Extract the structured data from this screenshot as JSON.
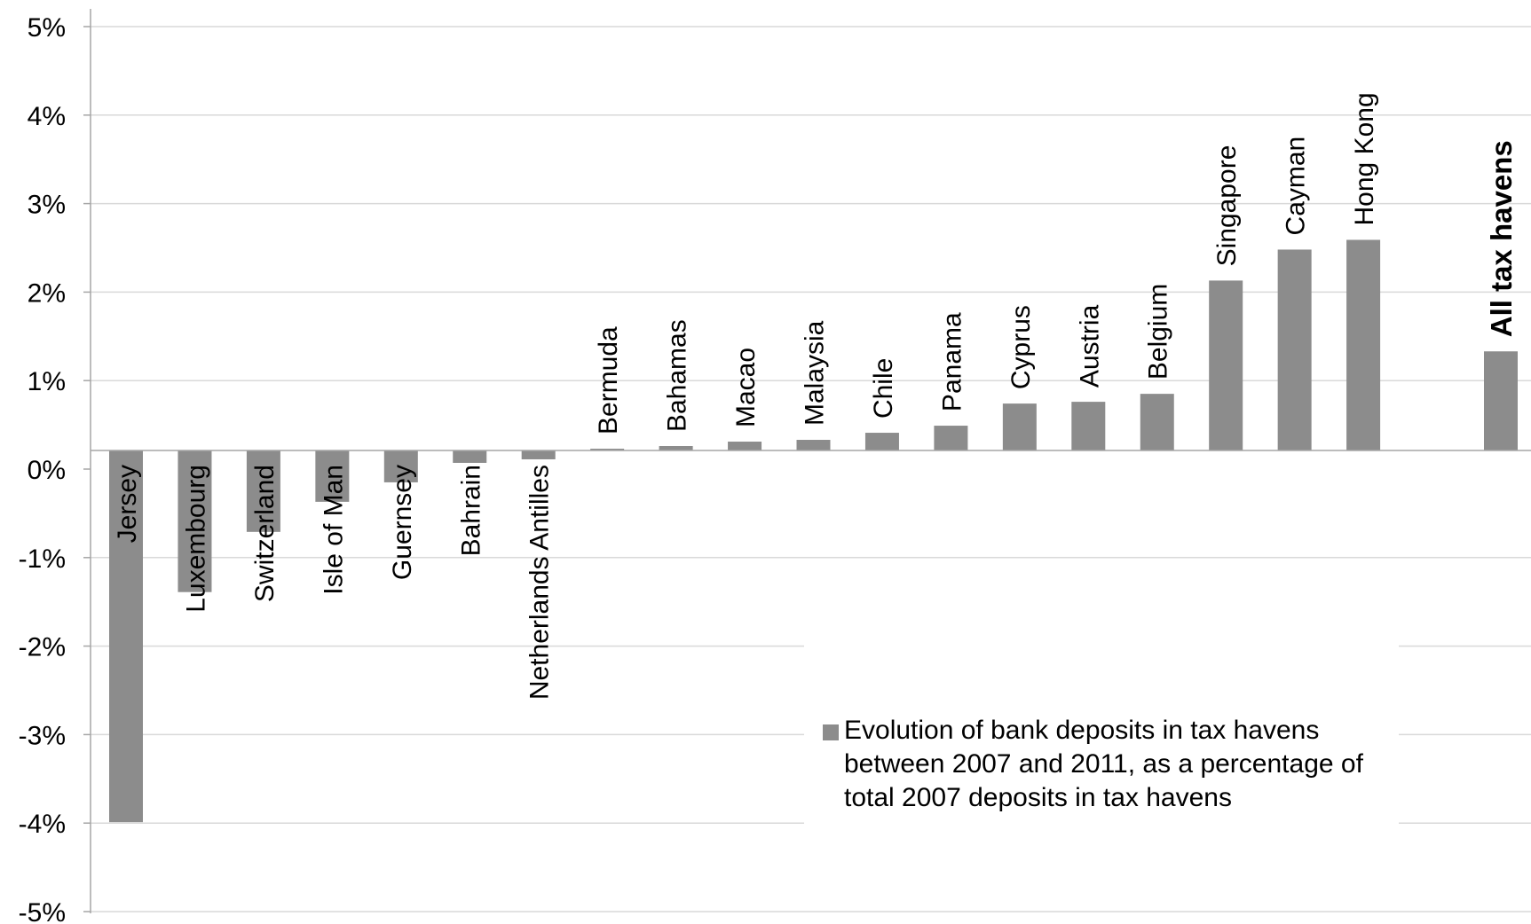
{
  "chart_data": {
    "type": "bar",
    "categories": [
      "Jersey",
      "Luxembourg",
      "Switzerland",
      "Isle of Man",
      "Guernsey",
      "Bahrain",
      "Netherlands Antilles",
      "Bermuda",
      "Bahamas",
      "Macao",
      "Malaysia",
      "Chile",
      "Panama",
      "Cyprus",
      "Austria",
      "Belgium",
      "Singapore",
      "Cayman",
      "Hong Kong",
      "",
      "All tax havens"
    ],
    "values": [
      -4.2,
      -1.6,
      -0.92,
      -0.58,
      -0.36,
      -0.14,
      -0.1,
      0.02,
      0.05,
      0.1,
      0.12,
      0.2,
      0.28,
      0.53,
      0.55,
      0.64,
      1.92,
      2.27,
      2.38,
      null,
      1.12
    ],
    "ylim": [
      -5,
      5
    ],
    "yticks": [
      "-5%",
      "-4%",
      "-3%",
      "-2%",
      "-1%",
      "0%",
      "1%",
      "2%",
      "3%",
      "4%",
      "5%"
    ],
    "bold_categories": [
      "All tax havens"
    ],
    "grid": true,
    "legend": {
      "placement": "bottom-right",
      "entries": [
        "Evolution of bank deposits in tax havens between 2007 and 2011, as a percentage of total 2007 deposits in tax havens"
      ]
    },
    "colors": {
      "bar": "#8c8c8c",
      "grid": "#d9d9d9",
      "axis": "#a6a6a6"
    }
  }
}
